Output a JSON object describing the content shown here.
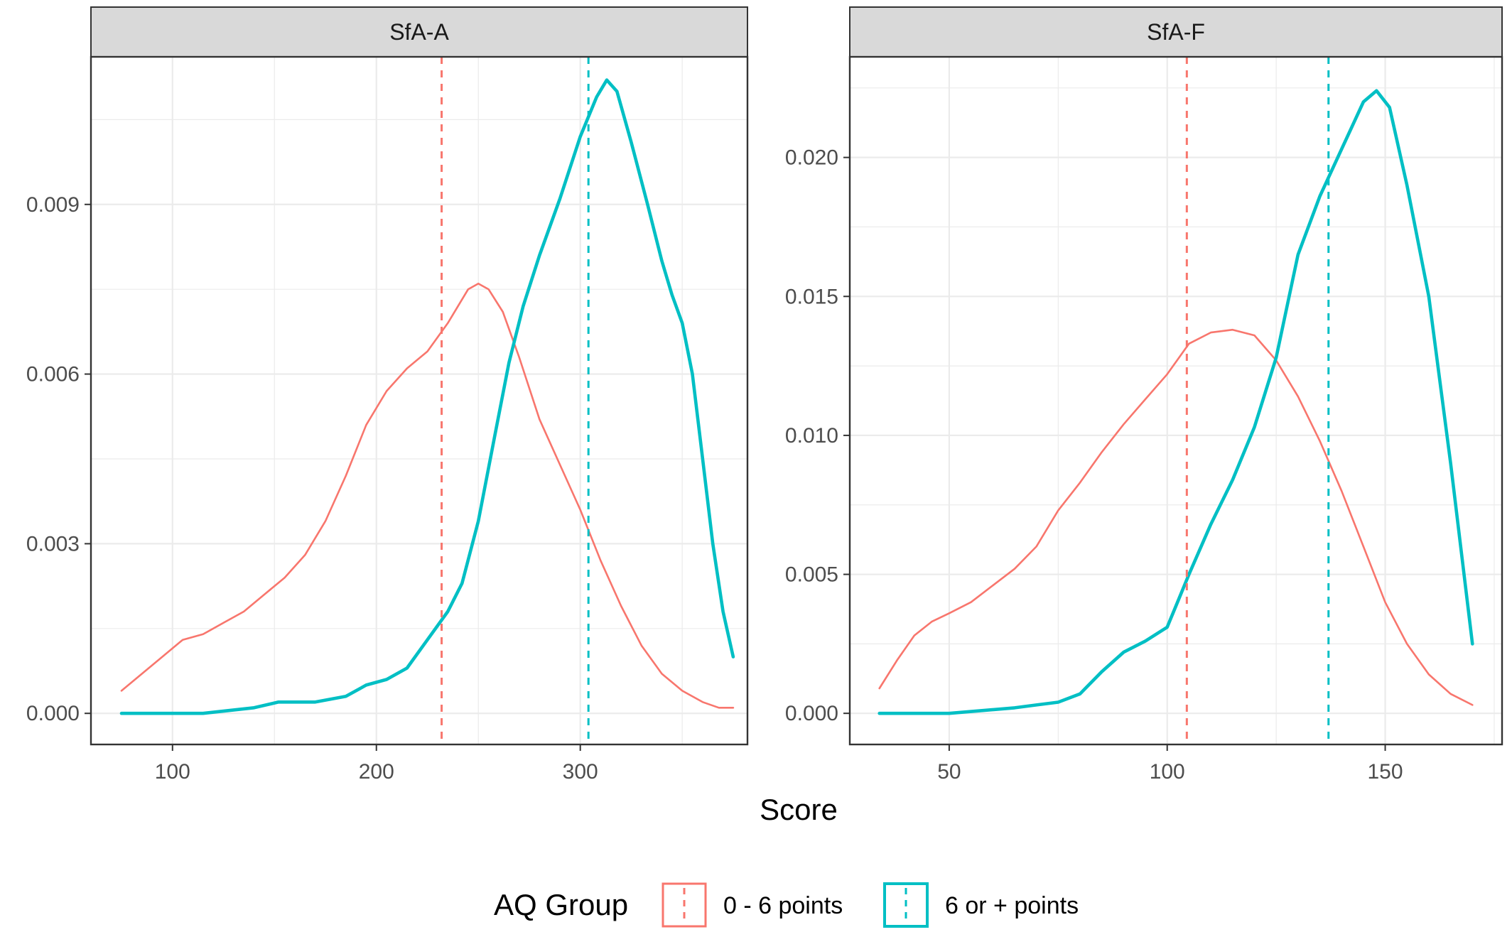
{
  "chart_data": {
    "type": "line",
    "x_axis_title": "Score",
    "legend": {
      "title": "AQ Group",
      "position": "bottom",
      "entries": [
        {
          "name": "0 - 6 points",
          "color": "#F8766D"
        },
        {
          "name": "6 or + points",
          "color": "#00BFC4"
        }
      ]
    },
    "colors": {
      "group_low": "#F8766D",
      "group_high": "#00BFC4",
      "strip_fill": "#D9D9D9",
      "grid": "#EBEBEB"
    },
    "grid": true,
    "panels": [
      {
        "title": "SfA-A",
        "xlim": [
          60,
          382
        ],
        "ylim": [
          -0.00055,
          0.01161
        ],
        "x_ticks": [
          100,
          200,
          300
        ],
        "x_tick_labels": [
          "100",
          "200",
          "300"
        ],
        "y_ticks": [
          0,
          0.003,
          0.006,
          0.009
        ],
        "y_tick_labels": [
          "0.000",
          "0.003",
          "0.006",
          "0.009"
        ],
        "series": [
          {
            "name": "0 - 6 points",
            "mean_line": 232,
            "points": [
              [
                75,
                0.0004
              ],
              [
                85,
                0.0007
              ],
              [
                95,
                0.001
              ],
              [
                105,
                0.0013
              ],
              [
                115,
                0.0014
              ],
              [
                125,
                0.0016
              ],
              [
                135,
                0.0018
              ],
              [
                145,
                0.0021
              ],
              [
                155,
                0.0024
              ],
              [
                165,
                0.0028
              ],
              [
                175,
                0.0034
              ],
              [
                185,
                0.0042
              ],
              [
                195,
                0.0051
              ],
              [
                205,
                0.0057
              ],
              [
                215,
                0.0061
              ],
              [
                225,
                0.0064
              ],
              [
                235,
                0.0069
              ],
              [
                245,
                0.0075
              ],
              [
                250,
                0.0076
              ],
              [
                255,
                0.0075
              ],
              [
                262,
                0.0071
              ],
              [
                270,
                0.0063
              ],
              [
                280,
                0.0052
              ],
              [
                290,
                0.0044
              ],
              [
                300,
                0.0036
              ],
              [
                310,
                0.0027
              ],
              [
                320,
                0.0019
              ],
              [
                330,
                0.0012
              ],
              [
                340,
                0.0007
              ],
              [
                350,
                0.0004
              ],
              [
                360,
                0.0002
              ],
              [
                368,
                0.0001
              ],
              [
                375,
                0.0001
              ]
            ]
          },
          {
            "name": "6 or + points",
            "mean_line": 304,
            "points": [
              [
                75,
                0.0
              ],
              [
                100,
                0.0
              ],
              [
                115,
                0.0
              ],
              [
                140,
                0.0001
              ],
              [
                152,
                0.0002
              ],
              [
                170,
                0.0002
              ],
              [
                185,
                0.0003
              ],
              [
                195,
                0.0005
              ],
              [
                205,
                0.0006
              ],
              [
                215,
                0.0008
              ],
              [
                225,
                0.0013
              ],
              [
                235,
                0.0018
              ],
              [
                242,
                0.0023
              ],
              [
                250,
                0.0034
              ],
              [
                258,
                0.0049
              ],
              [
                265,
                0.0062
              ],
              [
                272,
                0.0072
              ],
              [
                280,
                0.0081
              ],
              [
                290,
                0.0091
              ],
              [
                300,
                0.0102
              ],
              [
                308,
                0.0109
              ],
              [
                313,
                0.0112
              ],
              [
                318,
                0.011
              ],
              [
                325,
                0.0101
              ],
              [
                333,
                0.009
              ],
              [
                340,
                0.008
              ],
              [
                345,
                0.0074
              ],
              [
                350,
                0.0069
              ],
              [
                355,
                0.006
              ],
              [
                360,
                0.0045
              ],
              [
                365,
                0.003
              ],
              [
                370,
                0.0018
              ],
              [
                375,
                0.001
              ]
            ]
          }
        ]
      },
      {
        "title": "SfA-F",
        "xlim": [
          27.2,
          176.8
        ],
        "ylim": [
          -0.00112,
          0.02362
        ],
        "x_ticks": [
          50,
          100,
          150
        ],
        "x_tick_labels": [
          "50",
          "100",
          "150"
        ],
        "y_ticks": [
          0,
          0.005,
          0.01,
          0.015,
          0.02
        ],
        "y_tick_labels": [
          "0.000",
          "0.005",
          "0.010",
          "0.015",
          "0.020"
        ],
        "series": [
          {
            "name": "0 - 6 points",
            "mean_line": 104.5,
            "points": [
              [
                34,
                0.0009
              ],
              [
                38,
                0.0019
              ],
              [
                42,
                0.0028
              ],
              [
                46,
                0.0033
              ],
              [
                50,
                0.0036
              ],
              [
                55,
                0.004
              ],
              [
                60,
                0.0046
              ],
              [
                65,
                0.0052
              ],
              [
                70,
                0.006
              ],
              [
                75,
                0.0073
              ],
              [
                80,
                0.0083
              ],
              [
                85,
                0.0094
              ],
              [
                90,
                0.0104
              ],
              [
                95,
                0.0113
              ],
              [
                100,
                0.0122
              ],
              [
                105,
                0.0133
              ],
              [
                110,
                0.0137
              ],
              [
                115,
                0.0138
              ],
              [
                120,
                0.0136
              ],
              [
                125,
                0.0127
              ],
              [
                130,
                0.0114
              ],
              [
                135,
                0.0098
              ],
              [
                140,
                0.008
              ],
              [
                145,
                0.006
              ],
              [
                150,
                0.004
              ],
              [
                155,
                0.0025
              ],
              [
                160,
                0.0014
              ],
              [
                165,
                0.0007
              ],
              [
                170,
                0.0003
              ]
            ]
          },
          {
            "name": "6 or + points",
            "mean_line": 137,
            "points": [
              [
                34,
                0.0
              ],
              [
                50,
                0.0
              ],
              [
                65,
                0.0002
              ],
              [
                70,
                0.0003
              ],
              [
                75,
                0.0004
              ],
              [
                80,
                0.0007
              ],
              [
                85,
                0.0015
              ],
              [
                90,
                0.0022
              ],
              [
                95,
                0.0026
              ],
              [
                100,
                0.0031
              ],
              [
                105,
                0.005
              ],
              [
                110,
                0.0068
              ],
              [
                115,
                0.0084
              ],
              [
                120,
                0.0103
              ],
              [
                125,
                0.0128
              ],
              [
                130,
                0.0165
              ],
              [
                135,
                0.0186
              ],
              [
                140,
                0.0203
              ],
              [
                145,
                0.022
              ],
              [
                148,
                0.0224
              ],
              [
                151,
                0.0218
              ],
              [
                155,
                0.019
              ],
              [
                160,
                0.015
              ],
              [
                165,
                0.009
              ],
              [
                170,
                0.0025
              ]
            ]
          }
        ]
      }
    ]
  }
}
